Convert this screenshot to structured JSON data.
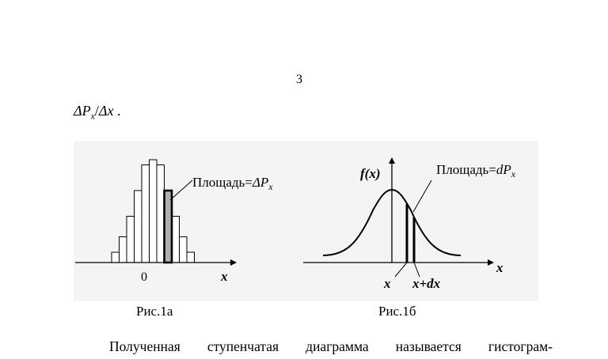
{
  "page": {
    "number": "3",
    "formula": {
      "num_base": "ΔP",
      "num_sub": "x",
      "slash": "/",
      "den": "Δx",
      "tail": " ."
    },
    "figure_a": {
      "label_area_prefix": "Площадь=",
      "label_area_symbol": "ΔP",
      "label_area_sub": "x",
      "axis_zero": "0",
      "axis_x": "x",
      "caption": "Рис.1а",
      "histogram_relative_heights": [
        0.1,
        0.25,
        0.45,
        0.7,
        0.95,
        1.0,
        0.95,
        0.7,
        0.45,
        0.25,
        0.1
      ],
      "highlighted_bar_index": 7
    },
    "figure_b": {
      "fx_label": "f(x)",
      "label_area_prefix": "Площадь=",
      "label_area_symbol": "dP",
      "label_area_sub": "x",
      "tick_x": "x",
      "tick_x_dx": "x+dx",
      "axis_x": "x",
      "caption": "Рис.1б"
    },
    "body_text": "Полученная ступенчатая диаграмма называется гистограм-"
  }
}
